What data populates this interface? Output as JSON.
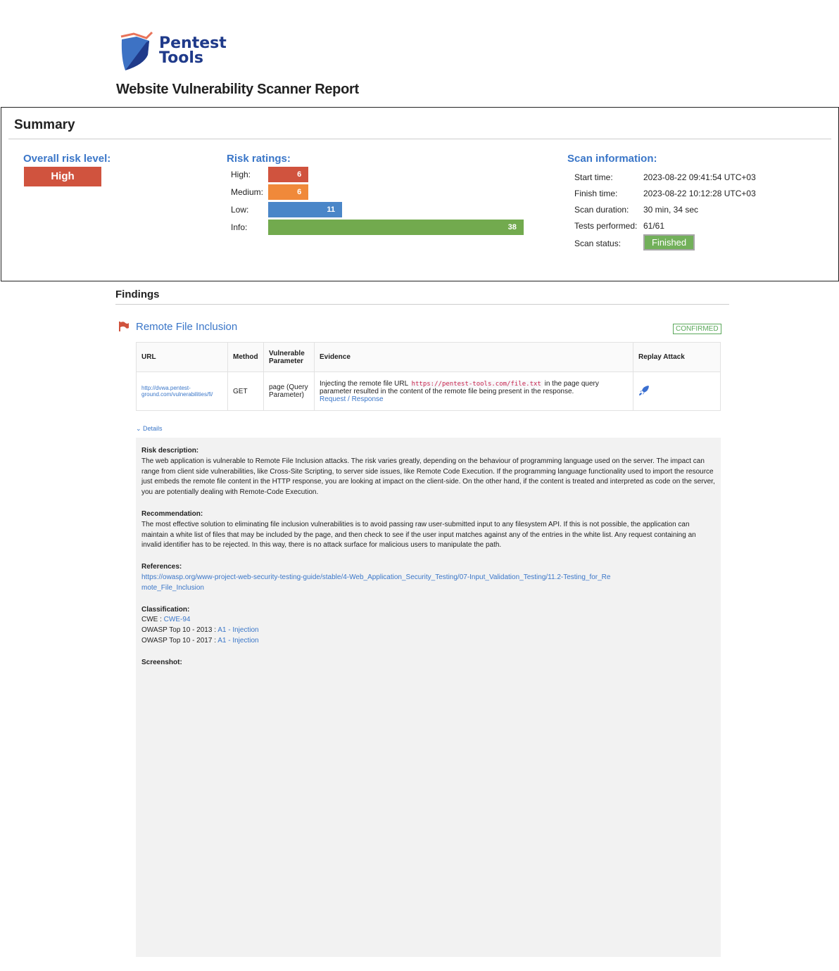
{
  "header": {
    "logo_text_1": "Pentest",
    "logo_text_2": "Tools",
    "title": "Website Vulnerability Scanner Report"
  },
  "summary": {
    "title": "Summary",
    "overall_label": "Overall risk level:",
    "overall_value": "High",
    "ratings_label": "Risk ratings:",
    "ratings": [
      {
        "label": "High:",
        "value": 6,
        "color": "#d0533e"
      },
      {
        "label": "Medium:",
        "value": 6,
        "color": "#f0893a"
      },
      {
        "label": "Low:",
        "value": 11,
        "color": "#4a86c8"
      },
      {
        "label": "Info:",
        "value": 38,
        "color": "#72aa4e"
      }
    ],
    "scan_label": "Scan information:",
    "scan": [
      {
        "k": "Start time:",
        "v": "2023-08-22 09:41:54 UTC+03"
      },
      {
        "k": "Finish time:",
        "v": "2023-08-22 10:12:28 UTC+03"
      },
      {
        "k": "Scan duration:",
        "v": "30 min, 34 sec"
      },
      {
        "k": "Tests performed:",
        "v": "61/61"
      },
      {
        "k": "Scan status:",
        "v": "Finished"
      }
    ]
  },
  "findings": {
    "title": "Findings",
    "vuln_title": "Remote File Inclusion",
    "status": "CONFIRMED",
    "columns": [
      "URL",
      "Method",
      "Vulnerable Parameter",
      "Evidence",
      "Replay Attack"
    ],
    "row": {
      "url": "http://dvwa.pentest-ground.com/vulnerabilities/fi/",
      "method": "GET",
      "param": "page (Query Parameter)",
      "ev1": "Injecting the remote file URL",
      "ev_code": "https://pentest-tools.com/file.txt",
      "ev2": "in the page query parameter resulted in the content of the remote file being present in the response.",
      "ev_link": "Request / Response"
    },
    "details_label": "Details",
    "risk_h": "Risk description:",
    "risk": "The web application is vulnerable to Remote File Inclusion attacks. The risk varies greatly, depending on the behaviour of programming language used on the server. The impact can range from client side vulnerabilities, like Cross-Site Scripting, to server side issues, like Remote Code Execution. If the programming language functionality used to import the resource just embeds the remote file content in the HTTP response, you are looking at impact on the client-side. On the other hand, if the content is treated and interpreted as code on the server, you are potentially dealing with Remote-Code Execution.",
    "rec_h": "Recommendation:",
    "rec": "The most effective solution to eliminating file inclusion vulnerabilities is to avoid passing raw user-submitted input to any filesystem API. If this is not possible, the application can maintain a white list of files that may be included by the page, and then check to see if the user input matches against any of the entries in the white list. Any request containing an invalid identifier has to be rejected. In this way, there is no attack surface for malicious users to manipulate the path.",
    "ref_h": "References:",
    "ref": "https://owasp.org/www-project-web-security-testing-guide/stable/4-Web_Application_Security_Testing/07-Input_Validation_Testing/11.2-Testing_for_Remote_File_Inclusion",
    "class_h": "Classification:",
    "cwe_k": "CWE : ",
    "cwe_v": "CWE-94",
    "o13_k": "OWASP Top 10 - 2013 : ",
    "o13_v": "A1 - Injection",
    "o17_k": "OWASP Top 10 - 2017 : ",
    "o17_v": "A1 - Injection",
    "shot_h": "Screenshot:"
  }
}
